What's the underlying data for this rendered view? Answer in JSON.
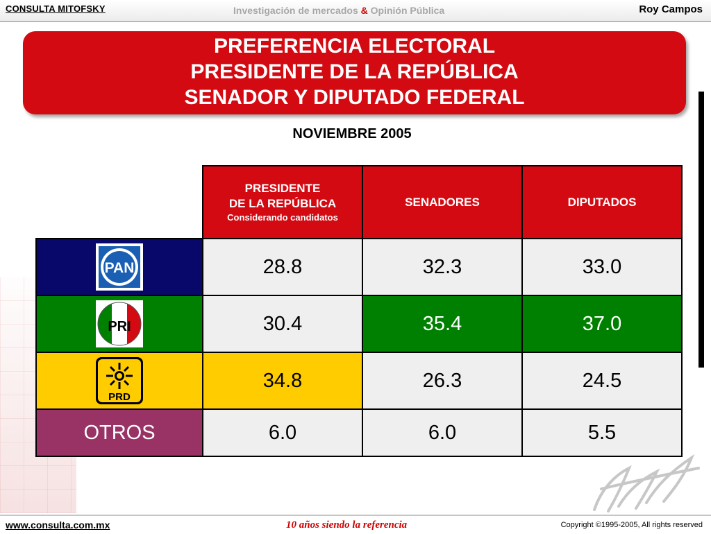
{
  "header": {
    "brand": "CONSULTA MITOFSKY",
    "tagline_part1": "Investigación de mercados",
    "tagline_amp": "&",
    "tagline_part2": "Opinión Pública",
    "author": "Roy Campos"
  },
  "title": {
    "line1": "PREFERENCIA ELECTORAL",
    "line2": "PRESIDENTE DE LA REPÚBLICA",
    "line3": "SENADOR Y DIPUTADO FEDERAL"
  },
  "subtitle": "NOVIEMBRE 2005",
  "table": {
    "columns": {
      "presidente_line1": "PRESIDENTE",
      "presidente_line2": "DE LA REPÚBLICA",
      "presidente_note": "Considerando candidatos",
      "senadores": "SENADORES",
      "diputados": "DIPUTADOS"
    },
    "rows": [
      {
        "party": "PAN",
        "logo_text": "PAN",
        "presidente": "28.8",
        "senadores": "32.3",
        "diputados": "33.0"
      },
      {
        "party": "PRI",
        "logo_text": "PRI",
        "presidente": "30.4",
        "senadores": "35.4",
        "diputados": "37.0"
      },
      {
        "party": "PRD",
        "logo_text": "PRD",
        "presidente": "34.8",
        "senadores": "26.3",
        "diputados": "24.5"
      },
      {
        "party": "OTROS",
        "label": "OTROS",
        "presidente": "6.0",
        "senadores": "6.0",
        "diputados": "5.5"
      }
    ],
    "colors": {
      "header_red": "#d40a12",
      "pan_blue": "#08086b",
      "pri_green": "#008000",
      "prd_yellow": "#ffcc00",
      "otros_purple": "#993366"
    }
  },
  "footer": {
    "url": "www.consulta.com.mx",
    "slogan": "10 años siendo la referencia",
    "copyright": "Copyright ©1995-2005, All rights reserved"
  }
}
